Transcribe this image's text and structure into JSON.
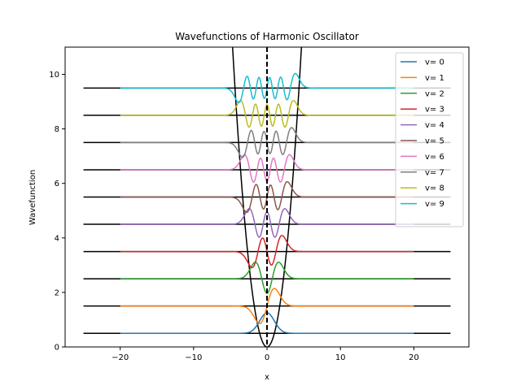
{
  "chart_data": {
    "type": "line",
    "title": "Wavefunctions of Harmonic Oscillator",
    "xlabel": "x",
    "ylabel": "Wavefunction",
    "xlim": [
      -27.5,
      27.5
    ],
    "ylim": [
      0,
      11
    ],
    "xticks": [
      -20,
      -10,
      0,
      10,
      20
    ],
    "yticks": [
      0,
      2,
      4,
      6,
      8,
      10
    ],
    "grid": false,
    "legend_position": "top-right",
    "potential": {
      "formula": "0.5*x^2",
      "color": "#000000"
    },
    "center_line": {
      "x": 0,
      "style": "dashed",
      "color": "#000000"
    },
    "energy_levels": {
      "x_range": [
        -25,
        25
      ],
      "values": [
        0.5,
        1.5,
        2.5,
        3.5,
        4.5,
        5.5,
        6.5,
        7.5,
        8.5,
        9.5
      ],
      "color": "#000000"
    },
    "wavefunction_x_range": [
      -20,
      20
    ],
    "wavefunction_amplitude_scale": 1.0,
    "series": [
      {
        "name": "v= 0",
        "n": 0,
        "offset": 0.5,
        "color": "#1f77b4"
      },
      {
        "name": "v= 1",
        "n": 1,
        "offset": 1.5,
        "color": "#ff7f0e"
      },
      {
        "name": "v= 2",
        "n": 2,
        "offset": 2.5,
        "color": "#2ca02c"
      },
      {
        "name": "v= 3",
        "n": 3,
        "offset": 3.5,
        "color": "#d62728"
      },
      {
        "name": "v= 4",
        "n": 4,
        "offset": 4.5,
        "color": "#9467bd"
      },
      {
        "name": "v= 5",
        "n": 5,
        "offset": 5.5,
        "color": "#8c564b"
      },
      {
        "name": "v= 6",
        "n": 6,
        "offset": 6.5,
        "color": "#e377c2"
      },
      {
        "name": "v= 7",
        "n": 7,
        "offset": 7.5,
        "color": "#7f7f7f"
      },
      {
        "name": "v= 8",
        "n": 8,
        "offset": 8.5,
        "color": "#bcbd22"
      },
      {
        "name": "v= 9",
        "n": 9,
        "offset": 9.5,
        "color": "#17becf"
      }
    ]
  }
}
